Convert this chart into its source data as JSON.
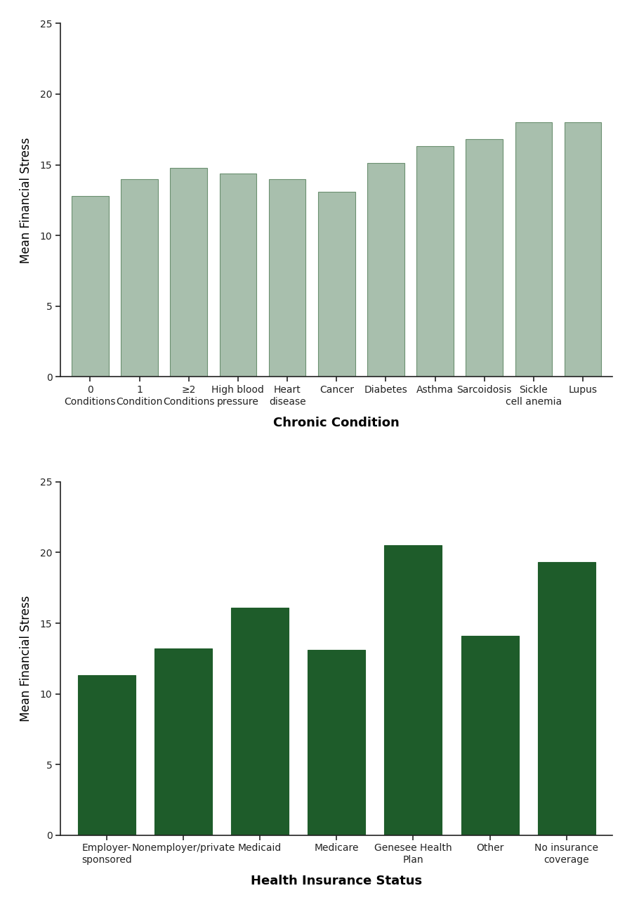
{
  "chart1": {
    "categories": [
      "0\nConditions",
      "1\nCondition",
      "≥2\nConditions",
      "High blood\npressure",
      "Heart\ndisease",
      "Cancer",
      "Diabetes",
      "Asthma",
      "Sarcoidosis",
      "Sickle\ncell anemia",
      "Lupus"
    ],
    "values": [
      12.8,
      14.0,
      14.8,
      14.4,
      14.0,
      13.1,
      15.15,
      16.3,
      16.8,
      18.0,
      18.0
    ],
    "bar_color": "#a8bfad",
    "bar_edge_color": "#6b9070",
    "ylabel": "Mean Financial Stress",
    "xlabel": "Chronic Condition",
    "ylim": [
      0,
      25
    ],
    "yticks": [
      0,
      5,
      10,
      15,
      20,
      25
    ]
  },
  "chart2": {
    "categories": [
      "Employer-\nsponsored",
      "Nonemployer/private",
      "Medicaid",
      "Medicare",
      "Genesee Health\nPlan",
      "Other",
      "No insurance\ncoverage"
    ],
    "values": [
      11.3,
      13.2,
      16.1,
      13.1,
      20.5,
      14.1,
      19.3
    ],
    "bar_color": "#1e5c2a",
    "bar_edge_color": "#1e5c2a",
    "ylabel": "Mean Financial Stress",
    "xlabel": "Health Insurance Status",
    "ylim": [
      0,
      25
    ],
    "yticks": [
      0,
      5,
      10,
      15,
      20,
      25
    ]
  },
  "background_color": "#ffffff",
  "spine_color": "#222222",
  "tick_color": "#222222",
  "ylabel_fontsize": 12,
  "xlabel_fontsize": 13,
  "tick_fontsize": 10,
  "bar_width": 0.75
}
